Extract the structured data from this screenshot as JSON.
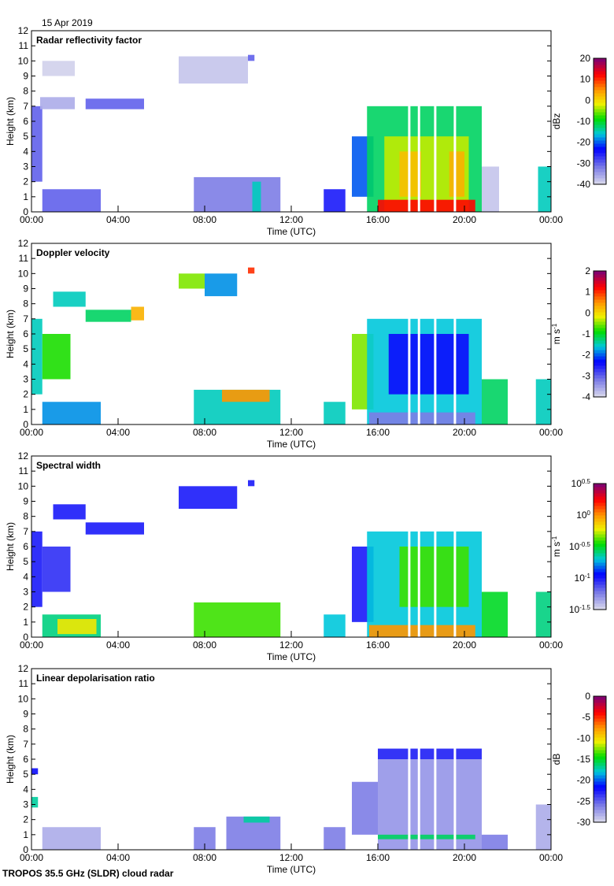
{
  "date_label": "15 Apr 2019",
  "footer": "TROPOS 35.5 GHz (SLDR) cloud radar",
  "chart_data": [
    {
      "type": "heatmap",
      "title": "Radar reflectivity factor",
      "xlabel": "Time (UTC)",
      "ylabel": "Height (km)",
      "xlim": [
        0,
        24
      ],
      "ylim": [
        0,
        12
      ],
      "xticks": [
        "00:00",
        "04:00",
        "08:00",
        "12:00",
        "16:00",
        "20:00",
        "00:00"
      ],
      "yticks": [
        "0",
        "1",
        "2",
        "3",
        "4",
        "5",
        "6",
        "7",
        "8",
        "9",
        "10",
        "11",
        "12"
      ],
      "colorbar": {
        "unit": "dBz",
        "range": [
          -40,
          20
        ],
        "ticks": [
          "-40",
          "-30",
          "-20",
          "-10",
          "0",
          "10",
          "20"
        ]
      },
      "regions": [
        [
          0,
          0.5,
          2,
          7,
          -30
        ],
        [
          0.4,
          2,
          6.8,
          7.6,
          -36
        ],
        [
          0.5,
          2,
          9,
          10,
          -39
        ],
        [
          2.5,
          5.2,
          6.8,
          7.5,
          -30
        ],
        [
          6.8,
          10,
          8.5,
          10.3,
          -38
        ],
        [
          10,
          10.3,
          10,
          10.4,
          -30
        ],
        [
          0.5,
          3.2,
          0,
          1.5,
          -30
        ],
        [
          7.5,
          11.5,
          0,
          2.3,
          -32
        ],
        [
          10.2,
          10.6,
          0,
          2,
          -15
        ],
        [
          13.5,
          14.5,
          0,
          1.5,
          -25
        ],
        [
          14.8,
          15.8,
          1,
          5,
          -20
        ],
        [
          15.5,
          20.8,
          0,
          7,
          -12
        ],
        [
          16.3,
          20.2,
          0,
          5,
          -3
        ],
        [
          17,
          18,
          1,
          4,
          2
        ],
        [
          19.3,
          20,
          1,
          4,
          3
        ],
        [
          16,
          20.5,
          0,
          0.8,
          12
        ],
        [
          20.8,
          21.6,
          0,
          3,
          -38
        ],
        [
          23.4,
          24,
          0,
          3,
          -15
        ]
      ],
      "gaps": [
        17.45,
        17.9,
        18.65,
        19.56
      ]
    },
    {
      "type": "heatmap",
      "title": "Doppler velocity",
      "xlabel": "Time (UTC)",
      "ylabel": "Height (km)",
      "xlim": [
        0,
        24
      ],
      "ylim": [
        0,
        12
      ],
      "xticks": [
        "00:00",
        "04:00",
        "08:00",
        "12:00",
        "16:00",
        "20:00",
        "00:00"
      ],
      "yticks": [
        "0",
        "1",
        "2",
        "3",
        "4",
        "5",
        "6",
        "7",
        "8",
        "9",
        "10",
        "11",
        "12"
      ],
      "colorbar": {
        "unit": "m s^-1",
        "range": [
          -4,
          2
        ],
        "ticks": [
          "-4",
          "-3",
          "-2",
          "-1",
          "0",
          "1",
          "2"
        ]
      },
      "regions": [
        [
          0,
          0.5,
          2,
          7,
          -1.5
        ],
        [
          0.5,
          1.8,
          3,
          6,
          -0.8
        ],
        [
          1,
          2.5,
          7.8,
          8.8,
          -1.5
        ],
        [
          2.5,
          4.6,
          6.8,
          7.6,
          -1.2
        ],
        [
          4.6,
          5.2,
          6.9,
          7.8,
          0.3
        ],
        [
          6.8,
          8,
          9,
          10,
          -0.5
        ],
        [
          8,
          9.5,
          8.5,
          10,
          -1.8
        ],
        [
          10,
          10.3,
          10,
          10.4,
          1
        ],
        [
          0.5,
          3.2,
          0,
          1.5,
          -1.8
        ],
        [
          7.5,
          11.5,
          0,
          2.3,
          -1.5
        ],
        [
          8.8,
          11,
          1.5,
          2.3,
          0.5
        ],
        [
          13.5,
          14.5,
          0,
          1.5,
          -1.5
        ],
        [
          14.8,
          15.8,
          1,
          6,
          -0.5
        ],
        [
          15.5,
          20.8,
          0,
          7,
          -1.6
        ],
        [
          16.5,
          20.2,
          2,
          6,
          -2.4
        ],
        [
          15.6,
          20.5,
          0,
          0.8,
          -3.2
        ],
        [
          20.8,
          22,
          0,
          3,
          -1.2
        ],
        [
          23.3,
          24,
          0,
          3,
          -1.5
        ]
      ],
      "gaps": [
        17.45,
        17.9,
        18.65,
        19.56
      ]
    },
    {
      "type": "heatmap",
      "title": "Spectral width",
      "xlabel": "Time (UTC)",
      "ylabel": "Height (km)",
      "xlim": [
        0,
        24
      ],
      "ylim": [
        0,
        12
      ],
      "xticks": [
        "00:00",
        "04:00",
        "08:00",
        "12:00",
        "16:00",
        "20:00",
        "00:00"
      ],
      "yticks": [
        "0",
        "1",
        "2",
        "3",
        "4",
        "5",
        "6",
        "7",
        "8",
        "9",
        "10",
        "11",
        "12"
      ],
      "colorbar": {
        "unit": "m s^-1",
        "scale": "log",
        "range": [
          -1.5,
          0.5
        ],
        "ticks": [
          "10^-1.5",
          "10^-1",
          "10^-0.5",
          "10^0",
          "10^0.5"
        ]
      },
      "regions": [
        [
          0,
          0.5,
          2,
          7,
          -1
        ],
        [
          0.5,
          1.8,
          3,
          6,
          -1.05
        ],
        [
          1,
          2.5,
          7.8,
          8.8,
          -1
        ],
        [
          2.5,
          5.2,
          6.8,
          7.6,
          -1
        ],
        [
          6.8,
          9.5,
          8.5,
          10,
          -1
        ],
        [
          10,
          10.3,
          10,
          10.4,
          -1
        ],
        [
          0.5,
          3.2,
          0,
          1.5,
          -0.6
        ],
        [
          1.2,
          3,
          0.2,
          1.2,
          -0.2
        ],
        [
          7.5,
          11.5,
          0,
          2.3,
          -0.4
        ],
        [
          13.5,
          14.5,
          0,
          1.5,
          -0.7
        ],
        [
          14.8,
          15.8,
          1,
          6,
          -1
        ],
        [
          15.5,
          20.8,
          0,
          7,
          -0.7
        ],
        [
          17,
          20.2,
          2,
          6,
          -0.4
        ],
        [
          15.6,
          20.5,
          0,
          0.8,
          0
        ],
        [
          20.8,
          22,
          0,
          3,
          -0.5
        ],
        [
          23.3,
          24,
          0,
          3,
          -0.6
        ]
      ],
      "gaps": [
        17.45,
        17.9,
        18.65,
        19.56
      ]
    },
    {
      "type": "heatmap",
      "title": "Linear depolarisation ratio",
      "xlabel": "Time (UTC)",
      "ylabel": "Height (km)",
      "xlim": [
        0,
        24
      ],
      "ylim": [
        0,
        12
      ],
      "xticks": [
        "00:00",
        "04:00",
        "08:00",
        "12:00",
        "16:00",
        "20:00",
        "00:00"
      ],
      "yticks": [
        "0",
        "1",
        "2",
        "3",
        "4",
        "5",
        "6",
        "7",
        "8",
        "9",
        "10",
        "11",
        "12"
      ],
      "colorbar": {
        "unit": "dB",
        "range": [
          -30,
          0
        ],
        "ticks": [
          "-30",
          "-25",
          "-20",
          "-15",
          "-10",
          "-5",
          "0"
        ]
      },
      "regions": [
        [
          0,
          0.3,
          2.8,
          3.5,
          -17
        ],
        [
          0,
          0.3,
          5,
          5.4,
          -22
        ],
        [
          0.5,
          3.2,
          0,
          1.5,
          -28
        ],
        [
          7.5,
          8.5,
          0,
          1.5,
          -26
        ],
        [
          9,
          11.5,
          0,
          2.2,
          -26
        ],
        [
          9.8,
          11,
          1.8,
          2.2,
          -17
        ],
        [
          13.5,
          14.5,
          0,
          1.5,
          -26
        ],
        [
          14.8,
          16,
          1,
          4.5,
          -26
        ],
        [
          16,
          20.8,
          0,
          6.7,
          -27
        ],
        [
          16,
          20.8,
          6,
          6.7,
          -23
        ],
        [
          16,
          20.5,
          0.7,
          1,
          -16
        ],
        [
          20.8,
          22,
          0,
          1,
          -26
        ],
        [
          23.3,
          24,
          0,
          3,
          -28
        ]
      ],
      "gaps": [
        17.45,
        17.9,
        18.65,
        19.56
      ]
    }
  ]
}
